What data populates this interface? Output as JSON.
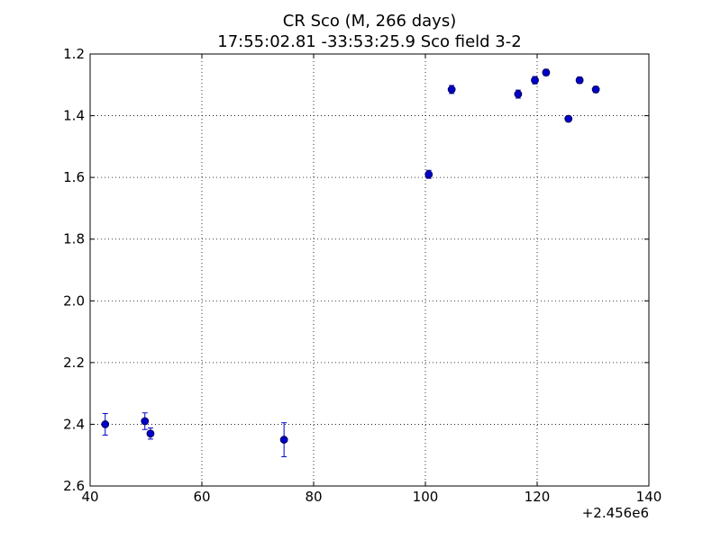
{
  "chart_data": {
    "type": "scatter",
    "title": "CR Sco  (M, 266 days)",
    "subtitle": "17:55:02.81 -33:53:25.9 Sco field 3-2",
    "xlabel": "",
    "ylabel": "",
    "x_offset_label": "+2.456e6",
    "xlim": [
      40,
      140
    ],
    "ylim": [
      2.6,
      1.2
    ],
    "y_inverted": true,
    "grid": true,
    "x_ticks": [
      40,
      60,
      80,
      100,
      120,
      140
    ],
    "x_tick_labels": [
      "40",
      "60",
      "80",
      "100",
      "120",
      "140"
    ],
    "y_ticks": [
      1.2,
      1.4,
      1.6,
      1.8,
      2.0,
      2.2,
      2.4,
      2.6
    ],
    "y_tick_labels": [
      "1.2",
      "1.4",
      "1.6",
      "1.8",
      "2.0",
      "2.2",
      "2.4",
      "2.6"
    ],
    "series": [
      {
        "color": "#0000cc",
        "points": [
          {
            "x": 42.7,
            "y": 2.4,
            "err": 0.035
          },
          {
            "x": 49.8,
            "y": 2.39,
            "err": 0.027
          },
          {
            "x": 50.8,
            "y": 2.43,
            "err": 0.018
          },
          {
            "x": 74.7,
            "y": 2.45,
            "err": 0.055
          },
          {
            "x": 100.6,
            "y": 1.59,
            "err": 0.013
          },
          {
            "x": 104.7,
            "y": 1.315,
            "err": 0.013
          },
          {
            "x": 116.6,
            "y": 1.33,
            "err": 0.013
          },
          {
            "x": 119.6,
            "y": 1.285,
            "err": 0.012
          },
          {
            "x": 121.6,
            "y": 1.26,
            "err": 0.01
          },
          {
            "x": 125.6,
            "y": 1.41,
            "err": 0.008
          },
          {
            "x": 127.6,
            "y": 1.285,
            "err": 0.01
          },
          {
            "x": 130.5,
            "y": 1.315,
            "err": 0.01
          }
        ]
      }
    ]
  }
}
